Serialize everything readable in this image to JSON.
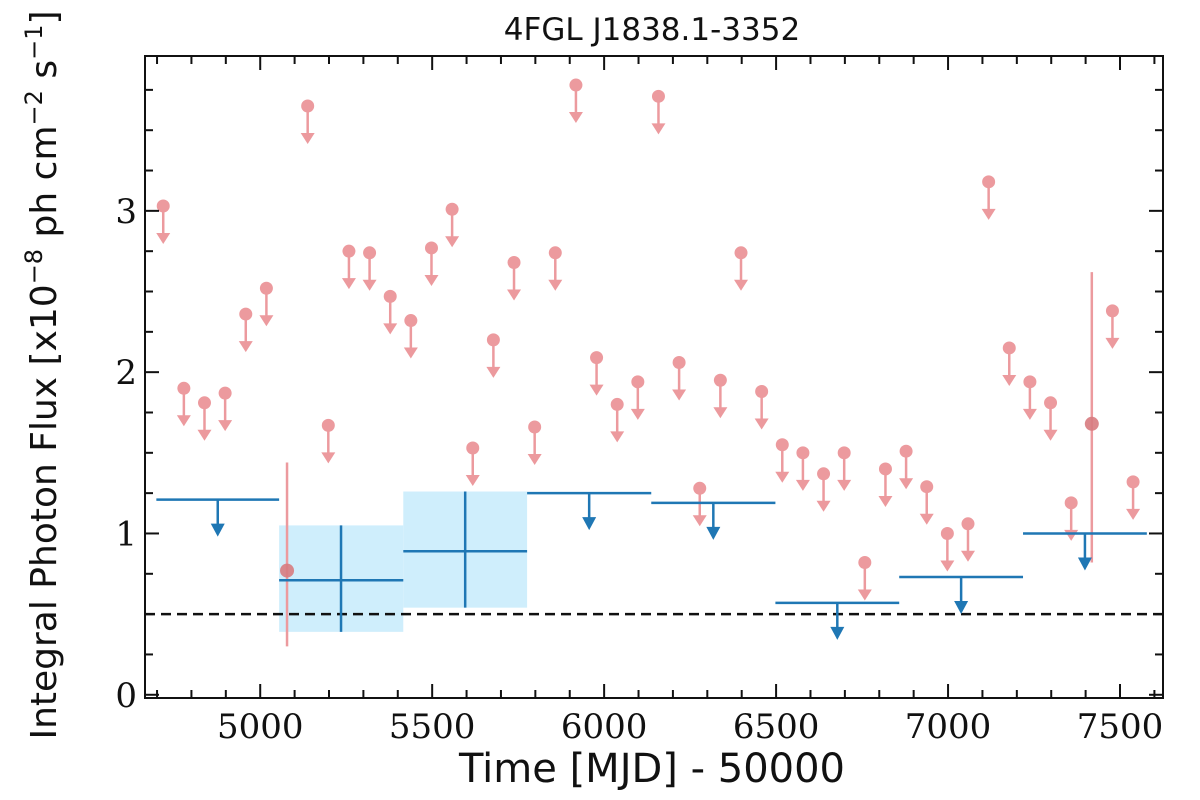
{
  "chart_data": {
    "type": "scatter",
    "title": "4FGL J1838.1-3352",
    "xlabel": "Time [MJD] - 50000",
    "ylabel": "Integral Photon Flux [x10",
    "ylabel_exp1": "−8",
    "ylabel_mid": " ph cm",
    "ylabel_exp2": "−2",
    "ylabel_mid2": " s",
    "ylabel_exp3": "−1",
    "ylabel_end": "]",
    "xlim": [
      4665,
      7625
    ],
    "ylim": [
      -0.02,
      3.96
    ],
    "xticks": [
      5000,
      5500,
      6000,
      6500,
      7000,
      7500
    ],
    "yticks": [
      0,
      1,
      2,
      3
    ],
    "xtick_labels": [
      "5000",
      "5500",
      "6000",
      "6500",
      "7000",
      "7500"
    ],
    "ytick_labels": [
      "0",
      "1",
      "2",
      "3"
    ],
    "reference_line": 0.5,
    "colors": {
      "upper_limit_points": "#ec9a9e",
      "detected_points": "#d77b80",
      "binned": "#1f77b4",
      "binned_band": "#cfeefc",
      "reference": "#111111"
    },
    "upper_limits": [
      {
        "x": 4718,
        "y": 3.03
      },
      {
        "x": 4778,
        "y": 1.9
      },
      {
        "x": 4838,
        "y": 1.81
      },
      {
        "x": 4898,
        "y": 1.87
      },
      {
        "x": 4958,
        "y": 2.36
      },
      {
        "x": 5018,
        "y": 2.52
      },
      {
        "x": 5138,
        "y": 3.65
      },
      {
        "x": 5198,
        "y": 1.67
      },
      {
        "x": 5258,
        "y": 2.75
      },
      {
        "x": 5318,
        "y": 2.74
      },
      {
        "x": 5378,
        "y": 2.47
      },
      {
        "x": 5438,
        "y": 2.32
      },
      {
        "x": 5498,
        "y": 2.77
      },
      {
        "x": 5558,
        "y": 3.01
      },
      {
        "x": 5618,
        "y": 1.53
      },
      {
        "x": 5678,
        "y": 2.2
      },
      {
        "x": 5738,
        "y": 2.68
      },
      {
        "x": 5798,
        "y": 1.66
      },
      {
        "x": 5858,
        "y": 2.74
      },
      {
        "x": 5918,
        "y": 3.78
      },
      {
        "x": 5978,
        "y": 2.09
      },
      {
        "x": 6038,
        "y": 1.8
      },
      {
        "x": 6098,
        "y": 1.94
      },
      {
        "x": 6158,
        "y": 3.71
      },
      {
        "x": 6218,
        "y": 2.06
      },
      {
        "x": 6278,
        "y": 1.28
      },
      {
        "x": 6338,
        "y": 1.95
      },
      {
        "x": 6398,
        "y": 2.74
      },
      {
        "x": 6458,
        "y": 1.88
      },
      {
        "x": 6518,
        "y": 1.55
      },
      {
        "x": 6578,
        "y": 1.5
      },
      {
        "x": 6638,
        "y": 1.37
      },
      {
        "x": 6698,
        "y": 1.5
      },
      {
        "x": 6758,
        "y": 0.82
      },
      {
        "x": 6818,
        "y": 1.4
      },
      {
        "x": 6878,
        "y": 1.51
      },
      {
        "x": 6938,
        "y": 1.29
      },
      {
        "x": 6998,
        "y": 1.0
      },
      {
        "x": 7058,
        "y": 1.06
      },
      {
        "x": 7118,
        "y": 3.18
      },
      {
        "x": 7178,
        "y": 2.15
      },
      {
        "x": 7238,
        "y": 1.94
      },
      {
        "x": 7298,
        "y": 1.81
      },
      {
        "x": 7358,
        "y": 1.19
      },
      {
        "x": 7478,
        "y": 2.38
      },
      {
        "x": 7538,
        "y": 1.32
      }
    ],
    "detections": [
      {
        "x": 5078,
        "y": 0.77,
        "ylo": 0.3,
        "yhi": 1.44
      },
      {
        "x": 7418,
        "y": 1.68,
        "ylo": 0.82,
        "yhi": 2.62
      }
    ],
    "binned_upper_limits": [
      {
        "x0": 4698,
        "x1": 5055,
        "y": 1.21
      },
      {
        "x0": 5776,
        "x1": 6137,
        "y": 1.25
      },
      {
        "x0": 6137,
        "x1": 6498,
        "y": 1.19
      },
      {
        "x0": 6498,
        "x1": 6858,
        "y": 0.57
      },
      {
        "x0": 6858,
        "x1": 7218,
        "y": 0.73
      },
      {
        "x0": 7218,
        "x1": 7578,
        "y": 1.0
      }
    ],
    "binned_detections": [
      {
        "x0": 5055,
        "x1": 5416,
        "x": 5235,
        "y": 0.71,
        "ylo": 0.39,
        "yhi": 1.05
      },
      {
        "x0": 5416,
        "x1": 5776,
        "x": 5596,
        "y": 0.89,
        "ylo": 0.54,
        "yhi": 1.26
      }
    ]
  }
}
